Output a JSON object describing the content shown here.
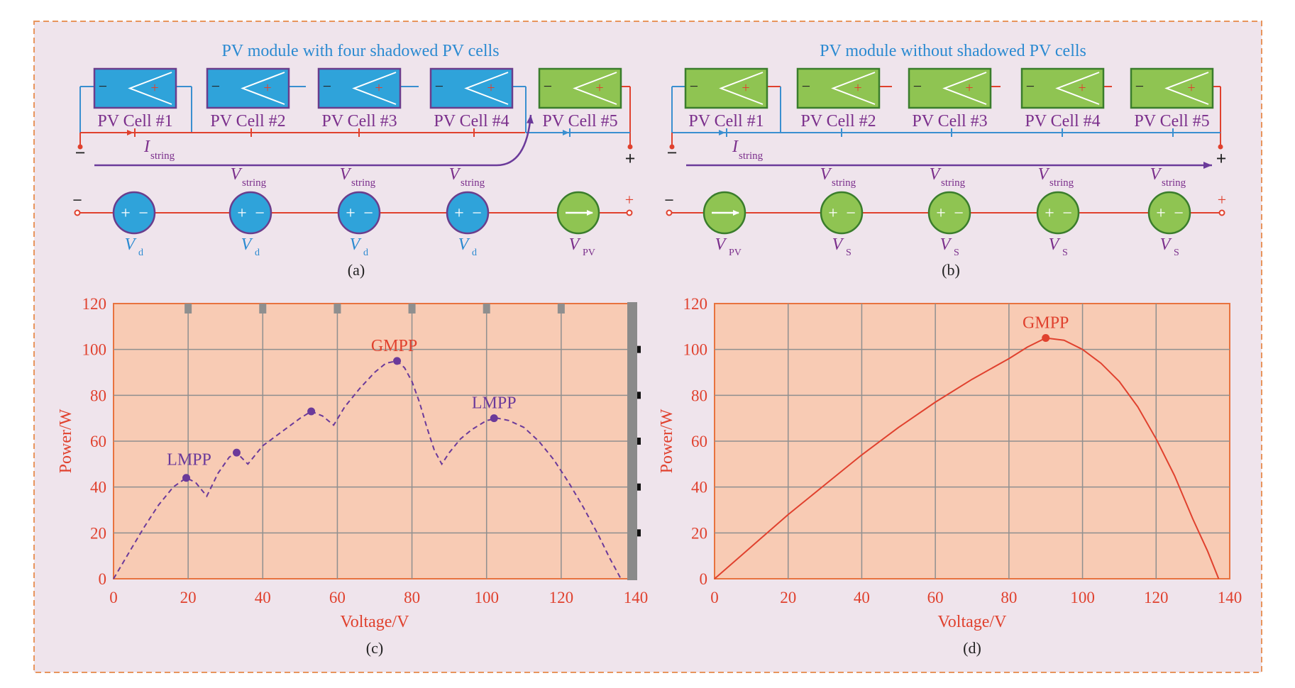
{
  "colors": {
    "frame_border": "#e8955d",
    "frame_bg": "#efe4ec",
    "shaded_cell": "#2fa3da",
    "shaded_cell_border": "#6a3d8c",
    "normal_cell": "#8fc452",
    "normal_cell_border": "#3a7d2c",
    "wire_red": "#e0412e",
    "wire_blue": "#3a8fd0",
    "label_purple": "#7b2f8c",
    "label_blue": "#2b8ad1",
    "arrow_purple": "#6b3a9a",
    "plot_bg": "#f8cbb4",
    "plot_border": "#e8733f",
    "grid": "#8f8f8f",
    "axis_text": "#e0412e",
    "curve_c": "#6b3a9a",
    "curve_d": "#e0412e"
  },
  "panel_a": {
    "title": "PV module with four shadowed PV cells",
    "caption": "(a)",
    "cells": [
      {
        "label": "PV Cell #1",
        "shadowed": true
      },
      {
        "label": "PV Cell #2",
        "shadowed": true
      },
      {
        "label": "PV Cell #3",
        "shadowed": true
      },
      {
        "label": "PV Cell #4",
        "shadowed": true
      },
      {
        "label": "PV Cell #5",
        "shadowed": false
      }
    ],
    "minus": "−",
    "plus": "+",
    "current_label": "I",
    "current_sub": "string",
    "vstring_main": "V",
    "vstring_sub": "string",
    "sources": [
      {
        "main": "V",
        "sub": "d",
        "kind": "diode"
      },
      {
        "main": "V",
        "sub": "d",
        "kind": "diode"
      },
      {
        "main": "V",
        "sub": "d",
        "kind": "diode"
      },
      {
        "main": "V",
        "sub": "d",
        "kind": "diode"
      },
      {
        "main": "V",
        "sub": "PV",
        "kind": "current"
      }
    ]
  },
  "panel_b": {
    "title": "PV module without shadowed PV cells",
    "caption": "(b)",
    "cells": [
      {
        "label": "PV Cell #1",
        "shadowed": false
      },
      {
        "label": "PV Cell #2",
        "shadowed": false
      },
      {
        "label": "PV Cell #3",
        "shadowed": false
      },
      {
        "label": "PV Cell #4",
        "shadowed": false
      },
      {
        "label": "PV Cell #5",
        "shadowed": false
      }
    ],
    "minus": "−",
    "plus": "+",
    "current_label": "I",
    "current_sub": "string",
    "vstring_main": "V",
    "vstring_sub": "string",
    "sources": [
      {
        "main": "V",
        "sub": "PV",
        "kind": "current"
      },
      {
        "main": "V",
        "sub": "S",
        "kind": "voltage"
      },
      {
        "main": "V",
        "sub": "S",
        "kind": "voltage"
      },
      {
        "main": "V",
        "sub": "S",
        "kind": "voltage"
      },
      {
        "main": "V",
        "sub": "S",
        "kind": "voltage"
      }
    ]
  },
  "chart_data": [
    {
      "type": "line",
      "caption": "(c)",
      "xlabel": "Voltage/V",
      "ylabel": "Power/W",
      "xlim": [
        0,
        140
      ],
      "ylim": [
        0,
        120
      ],
      "xticks": [
        0,
        20,
        40,
        60,
        80,
        100,
        120,
        140
      ],
      "yticks": [
        0,
        20,
        40,
        60,
        80,
        100,
        120
      ],
      "grid": true,
      "line_style": "dashed",
      "series": [
        {
          "x": [
            0,
            4,
            8,
            12,
            16,
            19.5,
            22,
            25,
            28,
            31,
            33,
            36,
            40,
            45,
            50,
            53,
            56,
            59,
            62,
            66,
            70,
            73,
            76,
            78,
            80,
            82,
            84,
            86,
            88,
            90,
            93,
            96,
            100,
            103,
            106,
            110,
            114,
            118,
            122,
            126,
            130,
            133,
            136
          ],
          "y": [
            0,
            11,
            22,
            32,
            40,
            44,
            42,
            36,
            46,
            53,
            55,
            50,
            58,
            64,
            70,
            73,
            71,
            67,
            75,
            83,
            90,
            94,
            95,
            92,
            86,
            77,
            66,
            56,
            50,
            55,
            61,
            65,
            69,
            70,
            69,
            66,
            60,
            52,
            42,
            31,
            19,
            9,
            0
          ]
        }
      ],
      "markers": [
        {
          "x": 19.5,
          "y": 44,
          "label": "LMPP"
        },
        {
          "x": 33,
          "y": 55,
          "label": ""
        },
        {
          "x": 53,
          "y": 73,
          "label": ""
        },
        {
          "x": 76,
          "y": 95,
          "label": "GMPP"
        },
        {
          "x": 102,
          "y": 70,
          "label": "LMPP"
        }
      ]
    },
    {
      "type": "line",
      "caption": "(d)",
      "xlabel": "Voltage/V",
      "ylabel": "Power/W",
      "xlim": [
        0,
        140
      ],
      "ylim": [
        0,
        120
      ],
      "xticks": [
        0,
        20,
        40,
        60,
        80,
        100,
        120,
        140
      ],
      "yticks": [
        0,
        20,
        40,
        60,
        80,
        100,
        120
      ],
      "grid": true,
      "line_style": "solid",
      "series": [
        {
          "x": [
            0,
            10,
            20,
            30,
            40,
            50,
            60,
            70,
            80,
            85,
            90,
            95,
            100,
            105,
            110,
            115,
            120,
            125,
            130,
            134,
            137
          ],
          "y": [
            0,
            14,
            28,
            41,
            54,
            66,
            77,
            87,
            96,
            101,
            105,
            104,
            100,
            94,
            86,
            75,
            61,
            45,
            26,
            12,
            0
          ]
        }
      ],
      "markers": [
        {
          "x": 90,
          "y": 105,
          "label": "GMPP"
        }
      ]
    }
  ]
}
